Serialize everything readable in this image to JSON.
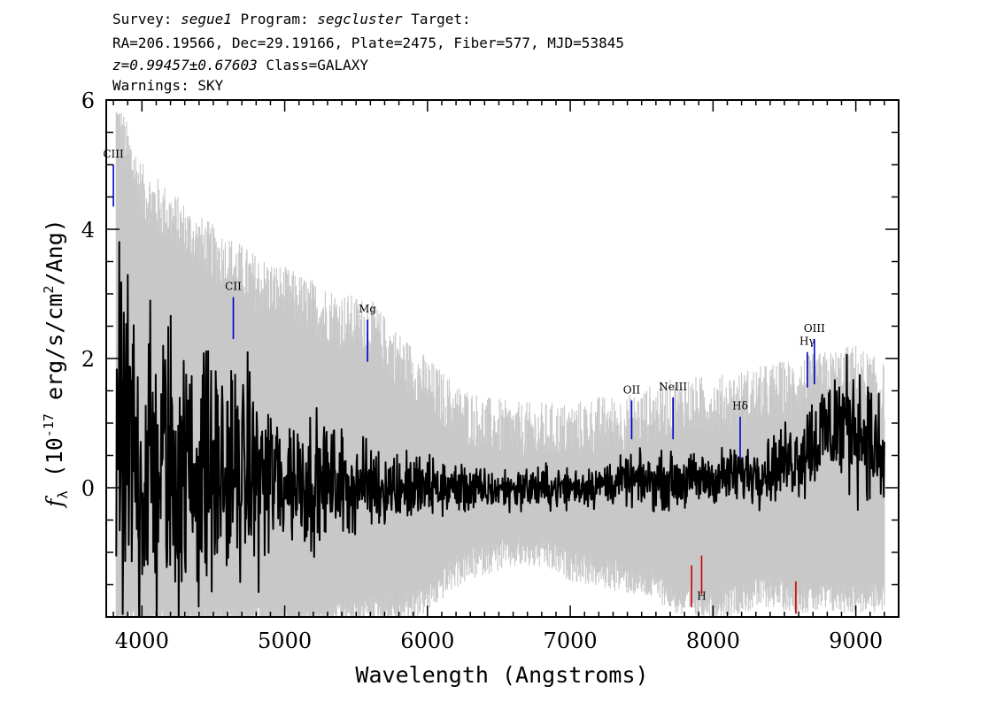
{
  "header": {
    "line1": {
      "survey_label": "Survey:",
      "survey": "segue1",
      "program_label": "Program:",
      "program": "segcluster",
      "target_label": "Target:"
    },
    "line2": "RA=206.19566, Dec=29.19166, Plate=2475, Fiber=577, MJD=53845",
    "line3": {
      "z": "z=0.99457±0.67603",
      "class": "Class=GALAXY"
    },
    "line4": "Warnings: SKY"
  },
  "colors": {
    "spectrum": "#000000",
    "error_band": "#c8c8c8",
    "emission": "#0000cc",
    "absorption": "#cc0000"
  },
  "chart_data": {
    "type": "line",
    "title": "",
    "xlabel": "Wavelength (Angstroms)",
    "ylabel": "f_λ (10^-17 erg/s/cm^2/Ang)",
    "xlim": [
      3750,
      9300
    ],
    "ylim": [
      -2,
      6
    ],
    "x_ticks": [
      4000,
      5000,
      6000,
      7000,
      8000,
      9000
    ],
    "y_ticks": [
      0,
      2,
      4,
      6
    ],
    "grid": false,
    "series": [
      {
        "role": "flux",
        "x": [
          3820,
          3900,
          4000,
          4100,
          4200,
          4300,
          4400,
          4500,
          4600,
          4700,
          4800,
          4900,
          5000,
          5200,
          5400,
          5600,
          5800,
          6000,
          6200,
          6400,
          6600,
          6800,
          7000,
          7200,
          7400,
          7600,
          7800,
          8000,
          8200,
          8400,
          8500,
          8600,
          8700,
          8800,
          8900,
          9000,
          9100,
          9200
        ],
        "y": [
          0.3,
          0.4,
          0.3,
          0.35,
          0.3,
          0.25,
          0.3,
          0.2,
          0.25,
          0.2,
          0.2,
          0.15,
          0.15,
          0.1,
          0.05,
          0.05,
          0.0,
          0.0,
          0.0,
          -0.05,
          0.0,
          0.0,
          0.0,
          0.05,
          0.1,
          0.1,
          0.1,
          0.15,
          0.2,
          0.3,
          0.4,
          0.5,
          0.7,
          0.9,
          1.0,
          1.0,
          0.7,
          0.3
        ],
        "scatter": [
          1.8,
          1.8,
          1.6,
          1.5,
          1.4,
          1.3,
          1.2,
          1.1,
          1.0,
          0.95,
          0.85,
          0.8,
          0.7,
          0.6,
          0.5,
          0.4,
          0.35,
          0.3,
          0.25,
          0.2,
          0.2,
          0.2,
          0.2,
          0.2,
          0.22,
          0.25,
          0.25,
          0.25,
          0.28,
          0.3,
          0.35,
          0.4,
          0.5,
          0.55,
          0.6,
          0.6,
          0.55,
          0.5
        ]
      },
      {
        "role": "error",
        "x": [
          3820,
          4000,
          4200,
          4400,
          4600,
          4800,
          5000,
          5200,
          5400,
          5600,
          5800,
          6000,
          6200,
          6400,
          6600,
          6800,
          7000,
          7200,
          7400,
          7600,
          7800,
          8000,
          8200,
          8400,
          8600,
          8800,
          9000,
          9200
        ],
        "upper": [
          5.5,
          4.4,
          4.0,
          3.6,
          3.3,
          3.0,
          2.8,
          2.6,
          2.4,
          2.3,
          1.8,
          1.4,
          1.0,
          0.8,
          0.7,
          0.7,
          0.7,
          0.8,
          0.8,
          1.0,
          1.1,
          1.1,
          1.2,
          1.3,
          1.4,
          1.5,
          1.6,
          1.3
        ],
        "lower": [
          -2.0,
          -2.0,
          -2.0,
          -2.0,
          -2.0,
          -2.0,
          -2.0,
          -2.0,
          -1.9,
          -1.8,
          -1.8,
          -1.6,
          -1.2,
          -1.0,
          -0.9,
          -0.9,
          -1.1,
          -1.2,
          -1.3,
          -1.4,
          -1.7,
          -1.7,
          -1.6,
          -1.5,
          -1.6,
          -1.6,
          -1.6,
          -1.6
        ]
      }
    ],
    "spectral_lines": [
      {
        "label": "CIII",
        "x": 3800,
        "y_top": 5.0,
        "y_bottom": 4.35,
        "kind": "emission"
      },
      {
        "label": "CII",
        "x": 4640,
        "y_top": 2.95,
        "y_bottom": 2.3,
        "kind": "emission"
      },
      {
        "label": "Mg",
        "x": 5580,
        "y_top": 2.6,
        "y_bottom": 1.95,
        "kind": "emission"
      },
      {
        "label": "OII",
        "x": 7430,
        "y_top": 1.35,
        "y_bottom": 0.75,
        "kind": "emission"
      },
      {
        "label": "NeIII",
        "x": 7720,
        "y_top": 1.4,
        "y_bottom": 0.75,
        "kind": "emission"
      },
      {
        "label": "Hδ",
        "x": 8190,
        "y_top": 1.1,
        "y_bottom": 0.45,
        "kind": "emission"
      },
      {
        "label": "Hγ",
        "x": 8660,
        "y_top": 2.1,
        "y_bottom": 1.55,
        "kind": "emission"
      },
      {
        "label": "OIII",
        "x": 8710,
        "y_top": 2.3,
        "y_bottom": 1.6,
        "kind": "emission"
      },
      {
        "label": "",
        "x": 7850,
        "y_top": -1.2,
        "y_bottom": -1.85,
        "kind": "absorption"
      },
      {
        "label": "H",
        "x": 7920,
        "y_top": -1.05,
        "y_bottom": -1.65,
        "kind": "absorption"
      },
      {
        "label": "",
        "x": 8580,
        "y_top": -1.45,
        "y_bottom": -1.95,
        "kind": "absorption"
      }
    ]
  }
}
